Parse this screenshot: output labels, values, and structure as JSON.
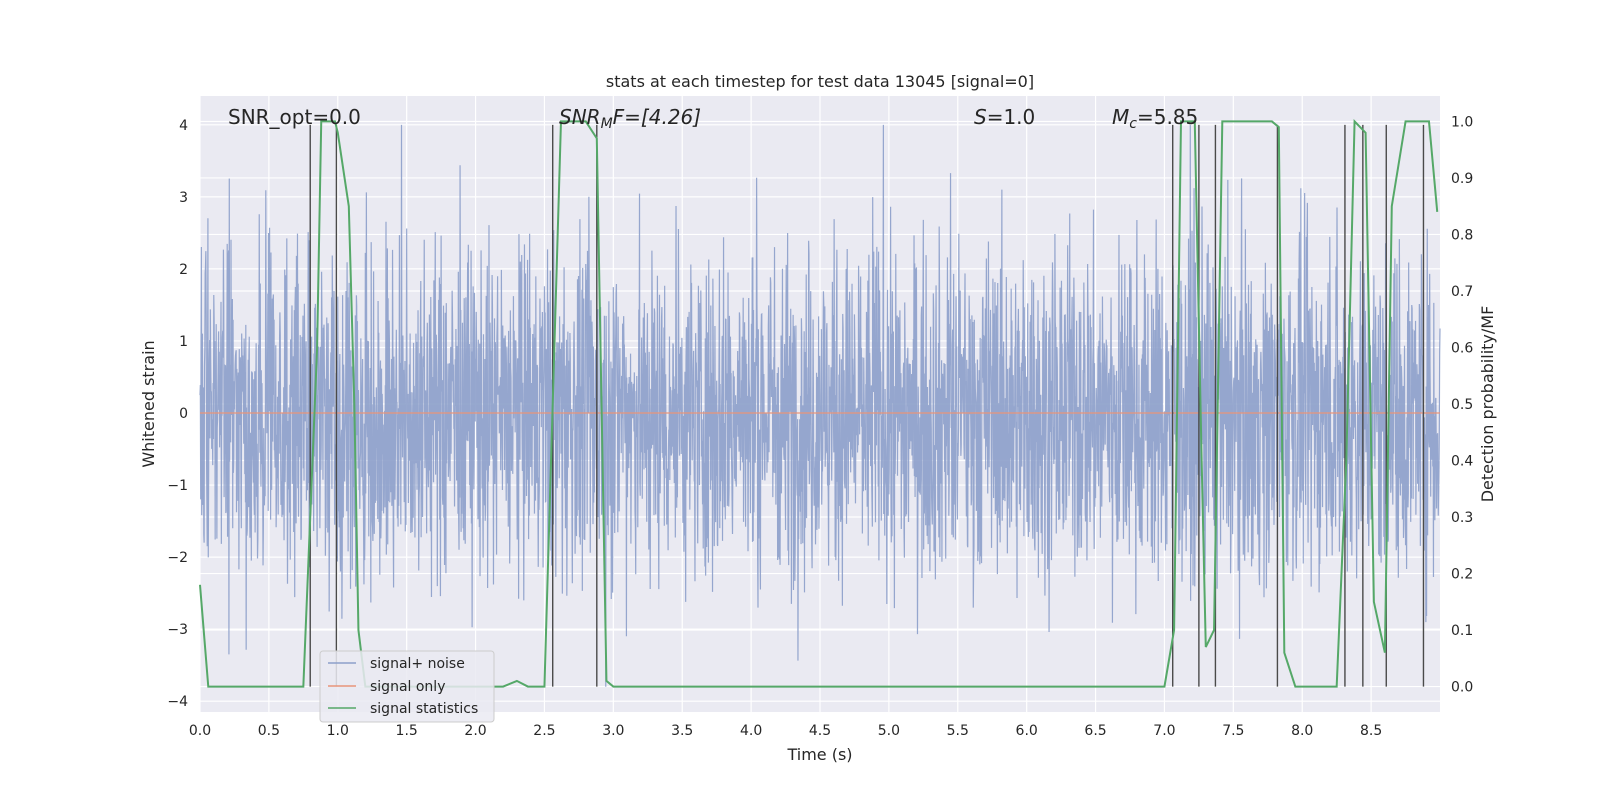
{
  "chart_data": {
    "type": "line",
    "title": "stats at each timestep for test data 13045 [signal=0]",
    "xlabel": "Time (s)",
    "ylabel": "Whitened strain",
    "y2label": "Detection probability/MF",
    "xlim": [
      0.0,
      9.0
    ],
    "ylim": [
      -4.15,
      4.4
    ],
    "y2lim": [
      -0.045,
      1.045
    ],
    "x_ticks": [
      0.0,
      0.5,
      1.0,
      1.5,
      2.0,
      2.5,
      3.0,
      3.5,
      4.0,
      4.5,
      5.0,
      5.5,
      6.0,
      6.5,
      7.0,
      7.5,
      8.0,
      8.5
    ],
    "x_tick_labels": [
      "0.0",
      "0.5",
      "1.0",
      "1.5",
      "2.0",
      "2.5",
      "3.0",
      "3.5",
      "4.0",
      "4.5",
      "5.0",
      "5.5",
      "6.0",
      "6.5",
      "7.0",
      "7.5",
      "8.0",
      "8.5"
    ],
    "y_ticks": [
      4,
      3,
      2,
      1,
      0,
      -1,
      -2,
      -3,
      -4
    ],
    "y_tick_labels": [
      "4",
      "3",
      "2",
      "1",
      "0",
      "−1",
      "−2",
      "−3",
      "−4"
    ],
    "y2_ticks": [
      1.0,
      0.9,
      0.8,
      0.7,
      0.6,
      0.5,
      0.4,
      0.3,
      0.2,
      0.1,
      0.0
    ],
    "y2_tick_labels": [
      "1.0",
      "0.9",
      "0.8",
      "0.7",
      "0.6",
      "0.5",
      "0.4",
      "0.3",
      "0.2",
      "0.1",
      "0.0"
    ],
    "grid": true,
    "legend_position": "lower-left",
    "annotations": {
      "snr_opt": "SNR_opt=0.0",
      "snr_mf_main": "SNR",
      "snr_mf_sub": "M",
      "snr_mf_rest": "F=[4.26]",
      "s_main": "S",
      "s_rest": "=1.0",
      "mc_main": "M",
      "mc_sub": "c",
      "mc_rest": "=5.85"
    },
    "series": [
      {
        "name": "signal+ noise",
        "color": "#8c9fca",
        "style": "noise-band",
        "approx_range": [
          -3.8,
          4.0
        ]
      },
      {
        "name": "signal only",
        "color": "#e8947a",
        "x": [
          0.0,
          9.0
        ],
        "y": [
          0.0,
          0.0
        ]
      },
      {
        "name": "signal statistics",
        "color": "#55a868",
        "axis": "right",
        "x": [
          0.0,
          0.06,
          0.12,
          0.2,
          0.75,
          0.8,
          0.85,
          0.88,
          0.98,
          1.0,
          1.08,
          1.12,
          1.15,
          1.2,
          2.2,
          2.3,
          2.38,
          2.5,
          2.62,
          2.8,
          2.88,
          2.95,
          3.0,
          7.0,
          7.07,
          7.12,
          7.22,
          7.27,
          7.3,
          7.36,
          7.42,
          7.78,
          7.83,
          7.87,
          7.95,
          8.0,
          8.25,
          8.32,
          8.38,
          8.46,
          8.52,
          8.6,
          8.65,
          8.75,
          8.92,
          8.98
        ],
        "y": [
          0.18,
          0.0,
          0.0,
          0.0,
          0.0,
          0.3,
          0.6,
          1.0,
          1.0,
          0.98,
          0.85,
          0.5,
          0.1,
          0.0,
          0.0,
          0.01,
          0.0,
          0.0,
          1.0,
          1.0,
          0.97,
          0.01,
          0.0,
          0.0,
          0.1,
          1.0,
          1.0,
          0.4,
          0.07,
          0.1,
          1.0,
          1.0,
          0.99,
          0.06,
          0.0,
          0.0,
          0.0,
          0.4,
          1.0,
          0.98,
          0.15,
          0.06,
          0.85,
          1.0,
          1.0,
          0.84
        ]
      }
    ],
    "vertical_markers": {
      "color": "#4a4a4a",
      "x": [
        0.8,
        0.99,
        2.56,
        2.88,
        7.06,
        7.25,
        7.37,
        7.82,
        8.31,
        8.44,
        8.61,
        8.88
      ]
    }
  }
}
